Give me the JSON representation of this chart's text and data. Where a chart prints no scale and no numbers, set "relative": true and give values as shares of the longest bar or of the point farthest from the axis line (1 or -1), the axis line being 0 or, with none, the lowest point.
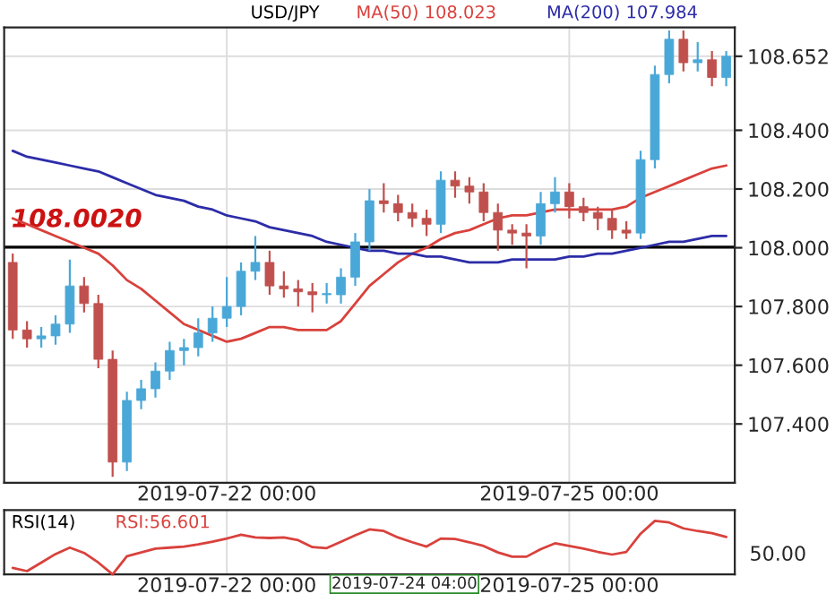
{
  "chart_data": [
    {
      "type": "candlestick",
      "title": "USD/JPY",
      "categories": [
        null,
        null,
        null,
        null,
        null,
        null,
        null,
        null,
        null,
        null,
        null,
        null,
        null,
        null,
        null,
        "2019-07-22 00:00",
        null,
        null,
        null,
        null,
        null,
        null,
        null,
        null,
        null,
        null,
        null,
        null,
        null,
        null,
        null,
        null,
        null,
        null,
        null,
        null,
        null,
        null,
        null,
        "2019-07-25 00:00",
        null,
        null,
        null,
        null,
        null,
        null,
        null,
        null,
        null,
        null,
        null
      ],
      "ohlc": [
        [
          107.95,
          107.98,
          107.69,
          107.72
        ],
        [
          107.72,
          107.75,
          107.66,
          107.69
        ],
        [
          107.69,
          107.73,
          107.66,
          107.7
        ],
        [
          107.7,
          107.77,
          107.67,
          107.74
        ],
        [
          107.74,
          107.96,
          107.71,
          107.87
        ],
        [
          107.87,
          107.9,
          107.78,
          107.81
        ],
        [
          107.81,
          107.84,
          107.59,
          107.62
        ],
        [
          107.62,
          107.65,
          107.22,
          107.27
        ],
        [
          107.27,
          107.51,
          107.24,
          107.48
        ],
        [
          107.48,
          107.55,
          107.45,
          107.52
        ],
        [
          107.52,
          107.61,
          107.49,
          107.58
        ],
        [
          107.58,
          107.68,
          107.55,
          107.65
        ],
        [
          107.65,
          107.69,
          107.6,
          107.66
        ],
        [
          107.66,
          107.76,
          107.63,
          107.71
        ],
        [
          107.71,
          107.8,
          107.68,
          107.76
        ],
        [
          107.76,
          107.9,
          107.73,
          107.8
        ],
        [
          107.8,
          107.95,
          107.77,
          107.92
        ],
        [
          107.92,
          108.04,
          107.89,
          107.95
        ],
        [
          107.95,
          107.99,
          107.84,
          107.87
        ],
        [
          107.87,
          107.92,
          107.83,
          107.86
        ],
        [
          107.86,
          107.89,
          107.8,
          107.85
        ],
        [
          107.85,
          107.88,
          107.78,
          107.84
        ],
        [
          107.84,
          107.88,
          107.81,
          107.84
        ],
        [
          107.84,
          107.93,
          107.81,
          107.9
        ],
        [
          107.9,
          108.05,
          107.87,
          108.02
        ],
        [
          108.02,
          108.2,
          107.99,
          108.16
        ],
        [
          108.16,
          108.22,
          108.12,
          108.15
        ],
        [
          108.15,
          108.18,
          108.09,
          108.12
        ],
        [
          108.12,
          108.15,
          108.07,
          108.1
        ],
        [
          108.1,
          108.13,
          108.04,
          108.08
        ],
        [
          108.08,
          108.26,
          108.05,
          108.23
        ],
        [
          108.23,
          108.26,
          108.17,
          108.21
        ],
        [
          108.21,
          108.24,
          108.15,
          108.19
        ],
        [
          108.19,
          108.22,
          108.09,
          108.12
        ],
        [
          108.12,
          108.15,
          107.99,
          108.06
        ],
        [
          108.06,
          108.08,
          108.01,
          108.05
        ],
        [
          108.05,
          108.08,
          107.93,
          108.04
        ],
        [
          108.04,
          108.19,
          108.01,
          108.15
        ],
        [
          108.15,
          108.24,
          108.12,
          108.19
        ],
        [
          108.19,
          108.22,
          108.1,
          108.14
        ],
        [
          108.14,
          108.17,
          108.09,
          108.12
        ],
        [
          108.12,
          108.14,
          108.06,
          108.1
        ],
        [
          108.1,
          108.13,
          108.03,
          108.06
        ],
        [
          108.06,
          108.09,
          108.03,
          108.05
        ],
        [
          108.05,
          108.33,
          108.03,
          108.3
        ],
        [
          108.3,
          108.62,
          108.27,
          108.59
        ],
        [
          108.59,
          108.74,
          108.56,
          108.71
        ],
        [
          108.71,
          108.74,
          108.6,
          108.63
        ],
        [
          108.63,
          108.7,
          108.6,
          108.64
        ],
        [
          108.64,
          108.67,
          108.55,
          108.58
        ],
        [
          108.58,
          108.67,
          108.55,
          108.652
        ]
      ],
      "series": [
        {
          "type": "line",
          "name": "MA(50) 108.023",
          "color": "#d9413c",
          "values": [
            108.1,
            108.08,
            108.06,
            108.04,
            108.02,
            108.0,
            107.98,
            107.94,
            107.89,
            107.86,
            107.82,
            107.78,
            107.74,
            107.72,
            107.7,
            107.68,
            107.69,
            107.71,
            107.73,
            107.73,
            107.72,
            107.72,
            107.72,
            107.75,
            107.81,
            107.87,
            107.91,
            107.95,
            107.98,
            108.0,
            108.03,
            108.05,
            108.06,
            108.08,
            108.1,
            108.11,
            108.11,
            108.12,
            108.13,
            108.13,
            108.13,
            108.13,
            108.13,
            108.14,
            108.17,
            108.19,
            108.21,
            108.23,
            108.25,
            108.27,
            108.28
          ]
        },
        {
          "type": "line",
          "name": "MA(200) 107.984",
          "color": "#2c2ca8",
          "values": [
            108.33,
            108.31,
            108.3,
            108.29,
            108.28,
            108.27,
            108.26,
            108.24,
            108.22,
            108.2,
            108.18,
            108.17,
            108.16,
            108.14,
            108.13,
            108.11,
            108.1,
            108.09,
            108.07,
            108.06,
            108.05,
            108.04,
            108.02,
            108.01,
            108.0,
            107.99,
            107.99,
            107.98,
            107.98,
            107.97,
            107.97,
            107.96,
            107.95,
            107.95,
            107.95,
            107.96,
            107.96,
            107.96,
            107.96,
            107.97,
            107.97,
            107.98,
            107.98,
            107.99,
            108.0,
            108.01,
            108.02,
            108.02,
            108.03,
            108.04,
            108.04
          ]
        }
      ],
      "ref_lines": [
        {
          "axis": "y",
          "value": 108.002,
          "label": "108.0020",
          "color": "#000000"
        }
      ],
      "ylim": [
        107.2,
        108.75
      ],
      "yticks": [
        {
          "value": 107.4,
          "label": "107.400"
        },
        {
          "value": 107.6,
          "label": "107.600"
        },
        {
          "value": 107.8,
          "label": "107.800"
        },
        {
          "value": 108.0,
          "label": "108.000"
        },
        {
          "value": 108.2,
          "label": "108.200"
        },
        {
          "value": 108.4,
          "label": "108.400"
        },
        {
          "value": 108.652,
          "label": "108.652"
        }
      ],
      "grid": true
    },
    {
      "type": "line",
      "title": "RSI(14)",
      "relative": true,
      "categories": [
        null,
        null,
        null,
        null,
        null,
        null,
        null,
        null,
        null,
        null,
        null,
        null,
        null,
        null,
        null,
        "2019-07-22 00:00",
        null,
        null,
        null,
        null,
        null,
        null,
        null,
        null,
        null,
        null,
        null,
        null,
        null,
        null,
        null,
        null,
        null,
        null,
        null,
        null,
        null,
        null,
        null,
        "2019-07-25 00:00",
        null,
        null,
        null,
        null,
        null,
        null,
        null,
        null,
        null,
        null,
        null
      ],
      "series": [
        {
          "name": "RSI:56.601",
          "color": "#d9413c",
          "values": [
            0.12,
            0.06,
            0.22,
            0.38,
            0.5,
            0.4,
            0.22,
            0.0,
            0.34,
            0.41,
            0.48,
            0.5,
            0.52,
            0.56,
            0.61,
            0.67,
            0.74,
            0.69,
            0.68,
            0.69,
            0.64,
            0.51,
            0.49,
            0.61,
            0.73,
            0.84,
            0.81,
            0.69,
            0.6,
            0.52,
            0.67,
            0.66,
            0.6,
            0.53,
            0.41,
            0.33,
            0.33,
            0.47,
            0.58,
            0.53,
            0.48,
            0.42,
            0.37,
            0.42,
            0.76,
            1.0,
            0.97,
            0.86,
            0.81,
            0.77,
            0.7
          ]
        }
      ],
      "annotations": [
        "50.00",
        "2019-07-24 04:00"
      ],
      "grid": "x"
    }
  ]
}
